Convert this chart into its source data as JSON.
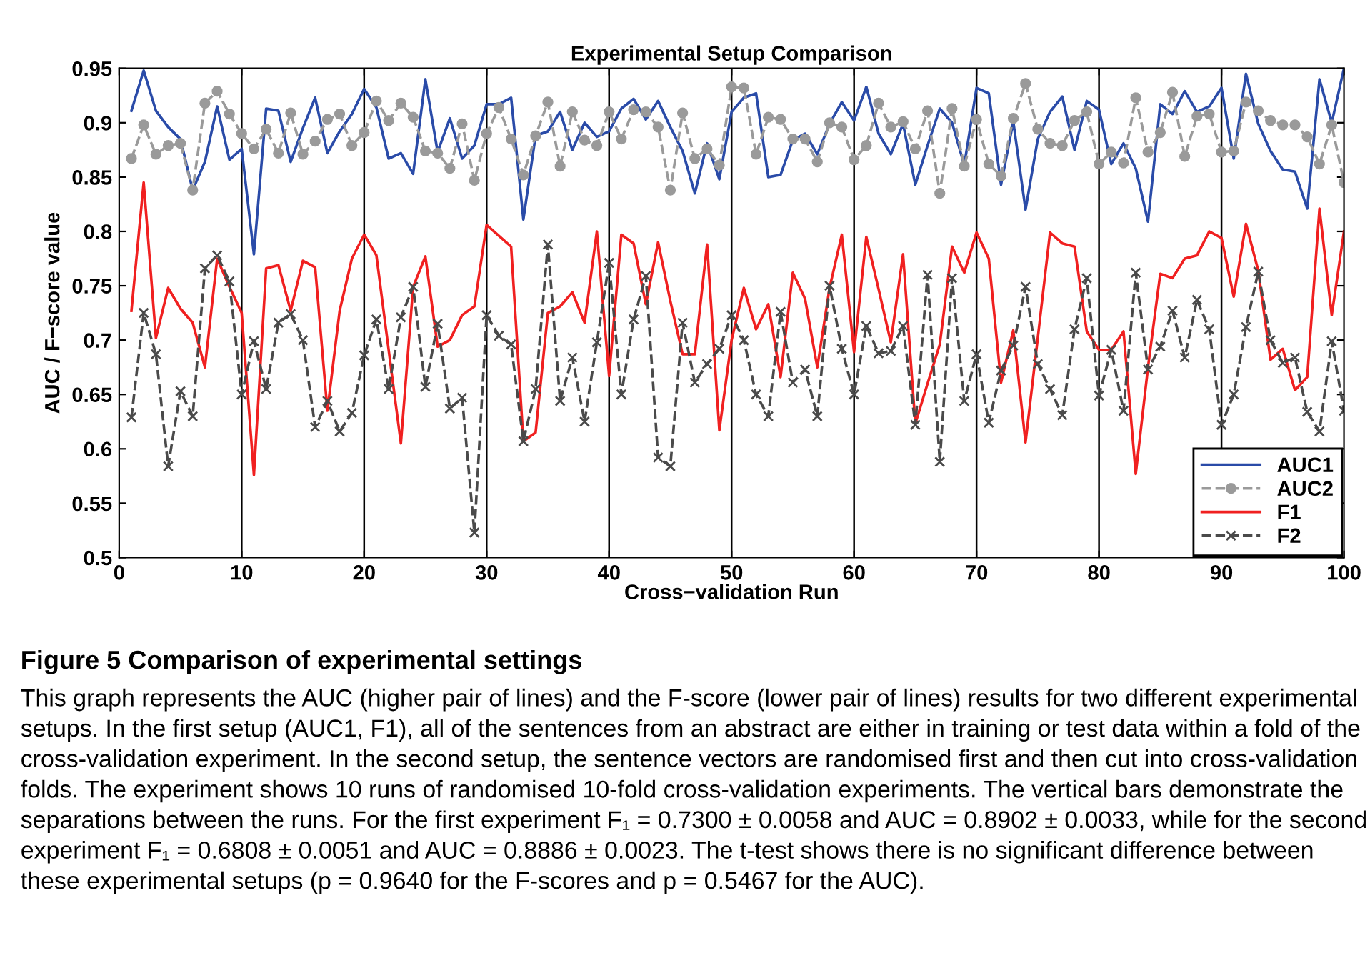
{
  "chart_data": {
    "type": "line",
    "title": "Experimental Setup Comparison",
    "xlabel": "Cross−validation Run",
    "ylabel": "AUC / F−score value",
    "x": [
      1,
      2,
      3,
      4,
      5,
      6,
      7,
      8,
      9,
      10,
      11,
      12,
      13,
      14,
      15,
      16,
      17,
      18,
      19,
      20,
      21,
      22,
      23,
      24,
      25,
      26,
      27,
      28,
      29,
      30,
      31,
      32,
      33,
      34,
      35,
      36,
      37,
      38,
      39,
      40,
      41,
      42,
      43,
      44,
      45,
      46,
      47,
      48,
      49,
      50,
      51,
      52,
      53,
      54,
      55,
      56,
      57,
      58,
      59,
      60,
      61,
      62,
      63,
      64,
      65,
      66,
      67,
      68,
      69,
      70,
      71,
      72,
      73,
      74,
      75,
      76,
      77,
      78,
      79,
      80,
      81,
      82,
      83,
      84,
      85,
      86,
      87,
      88,
      89,
      90,
      91,
      92,
      93,
      94,
      95,
      96,
      97,
      98,
      99,
      100
    ],
    "series": [
      {
        "name": "AUC1",
        "color": "#2a4ba8",
        "marker": "none",
        "line_style": "solid",
        "values": [
          0.911,
          0.948,
          0.911,
          0.896,
          0.885,
          0.838,
          0.864,
          0.915,
          0.866,
          0.876,
          0.779,
          0.913,
          0.911,
          0.864,
          0.895,
          0.923,
          0.872,
          0.892,
          0.908,
          0.931,
          0.914,
          0.867,
          0.872,
          0.853,
          0.94,
          0.873,
          0.904,
          0.867,
          0.879,
          0.917,
          0.917,
          0.923,
          0.811,
          0.888,
          0.892,
          0.91,
          0.875,
          0.9,
          0.887,
          0.892,
          0.913,
          0.922,
          0.903,
          0.92,
          0.896,
          0.874,
          0.835,
          0.881,
          0.848,
          0.91,
          0.923,
          0.927,
          0.85,
          0.852,
          0.884,
          0.89,
          0.871,
          0.899,
          0.919,
          0.902,
          0.933,
          0.89,
          0.871,
          0.899,
          0.843,
          0.879,
          0.913,
          0.9,
          0.861,
          0.932,
          0.927,
          0.843,
          0.901,
          0.82,
          0.885,
          0.91,
          0.924,
          0.875,
          0.92,
          0.912,
          0.862,
          0.881,
          0.858,
          0.809,
          0.917,
          0.908,
          0.929,
          0.91,
          0.915,
          0.932,
          0.867,
          0.945,
          0.899,
          0.874,
          0.857,
          0.855,
          0.821,
          0.94,
          0.9,
          0.95
        ]
      },
      {
        "name": "AUC2",
        "color": "#9a9a9a",
        "marker": "circle",
        "line_style": "dashed",
        "values": [
          0.867,
          0.898,
          0.871,
          0.879,
          0.881,
          0.838,
          0.918,
          0.929,
          0.908,
          0.89,
          0.876,
          0.894,
          0.872,
          0.909,
          0.871,
          0.883,
          0.903,
          0.908,
          0.879,
          0.891,
          0.92,
          0.902,
          0.918,
          0.905,
          0.874,
          0.872,
          0.858,
          0.899,
          0.847,
          0.89,
          0.914,
          0.885,
          0.852,
          0.888,
          0.919,
          0.86,
          0.91,
          0.884,
          0.879,
          0.91,
          0.885,
          0.912,
          0.91,
          0.896,
          0.838,
          0.909,
          0.867,
          0.876,
          0.861,
          0.933,
          0.932,
          0.871,
          0.905,
          0.903,
          0.885,
          0.885,
          0.864,
          0.9,
          0.896,
          0.866,
          0.879,
          0.918,
          0.896,
          0.901,
          0.876,
          0.911,
          0.835,
          0.913,
          0.86,
          0.903,
          0.862,
          0.851,
          0.904,
          0.936,
          0.894,
          0.881,
          0.879,
          0.902,
          0.91,
          0.862,
          0.873,
          0.863,
          0.923,
          0.873,
          0.891,
          0.928,
          0.869,
          0.906,
          0.908,
          0.873,
          0.874,
          0.919,
          0.911,
          0.902,
          0.898,
          0.898,
          0.887,
          0.862,
          0.898,
          0.845
        ]
      },
      {
        "name": "F1",
        "color": "#f02020",
        "marker": "none",
        "line_style": "solid",
        "values": [
          0.727,
          0.845,
          0.702,
          0.748,
          0.729,
          0.716,
          0.675,
          0.775,
          0.749,
          0.725,
          0.576,
          0.766,
          0.769,
          0.727,
          0.773,
          0.767,
          0.635,
          0.727,
          0.775,
          0.797,
          0.778,
          0.691,
          0.605,
          0.749,
          0.777,
          0.694,
          0.7,
          0.723,
          0.731,
          0.806,
          0.796,
          0.786,
          0.607,
          0.615,
          0.725,
          0.731,
          0.744,
          0.716,
          0.8,
          0.667,
          0.797,
          0.789,
          0.733,
          0.79,
          0.736,
          0.687,
          0.687,
          0.788,
          0.617,
          0.7,
          0.748,
          0.71,
          0.733,
          0.666,
          0.762,
          0.738,
          0.675,
          0.748,
          0.797,
          0.689,
          0.795,
          0.747,
          0.698,
          0.779,
          0.623,
          0.66,
          0.696,
          0.786,
          0.762,
          0.799,
          0.775,
          0.661,
          0.709,
          0.606,
          0.702,
          0.799,
          0.789,
          0.786,
          0.708,
          0.691,
          0.691,
          0.708,
          0.577,
          0.675,
          0.761,
          0.757,
          0.775,
          0.778,
          0.8,
          0.794,
          0.74,
          0.807,
          0.764,
          0.682,
          0.692,
          0.654,
          0.666,
          0.821,
          0.723,
          0.8
        ]
      },
      {
        "name": "F2",
        "color": "#4a4a4a",
        "marker": "cross",
        "line_style": "dashed",
        "values": [
          0.629,
          0.725,
          0.687,
          0.584,
          0.653,
          0.63,
          0.766,
          0.778,
          0.754,
          0.65,
          0.699,
          0.655,
          0.716,
          0.724,
          0.7,
          0.62,
          0.644,
          0.616,
          0.633,
          0.686,
          0.719,
          0.655,
          0.721,
          0.749,
          0.657,
          0.715,
          0.637,
          0.647,
          0.523,
          0.723,
          0.704,
          0.696,
          0.607,
          0.655,
          0.788,
          0.644,
          0.684,
          0.625,
          0.698,
          0.771,
          0.65,
          0.719,
          0.759,
          0.592,
          0.584,
          0.716,
          0.661,
          0.678,
          0.692,
          0.723,
          0.7,
          0.65,
          0.63,
          0.726,
          0.661,
          0.673,
          0.63,
          0.75,
          0.692,
          0.65,
          0.713,
          0.688,
          0.69,
          0.713,
          0.622,
          0.76,
          0.588,
          0.757,
          0.644,
          0.687,
          0.624,
          0.672,
          0.695,
          0.749,
          0.678,
          0.655,
          0.631,
          0.71,
          0.757,
          0.649,
          0.691,
          0.635,
          0.762,
          0.673,
          0.694,
          0.727,
          0.684,
          0.737,
          0.71,
          0.622,
          0.65,
          0.712,
          0.763,
          0.7,
          0.679,
          0.684,
          0.634,
          0.616,
          0.699,
          0.635
        ]
      }
    ],
    "xlim": [
      0,
      100
    ],
    "xticks": [
      0,
      10,
      20,
      30,
      40,
      50,
      60,
      70,
      80,
      90,
      100
    ],
    "ylim": [
      0.5,
      0.95
    ],
    "yticks": [
      0.5,
      0.55,
      0.6,
      0.65,
      0.7,
      0.75,
      0.8,
      0.85,
      0.9,
      0.95
    ],
    "ref_lines": [
      {
        "axis": "x",
        "value": 10,
        "color": "#000000"
      },
      {
        "axis": "x",
        "value": 20,
        "color": "#000000"
      },
      {
        "axis": "x",
        "value": 30,
        "color": "#000000"
      },
      {
        "axis": "x",
        "value": 40,
        "color": "#000000"
      },
      {
        "axis": "x",
        "value": 50,
        "color": "#000000"
      },
      {
        "axis": "x",
        "value": 60,
        "color": "#000000"
      },
      {
        "axis": "x",
        "value": 70,
        "color": "#000000"
      },
      {
        "axis": "x",
        "value": 80,
        "color": "#000000"
      },
      {
        "axis": "x",
        "value": 90,
        "color": "#000000"
      }
    ],
    "legend": "bottom right",
    "grid": false,
    "annotations": [
      "Figure 5 Comparison of experimental settings",
      "This graph represents the AUC (higher pair of lines) and the F-score (lower pair of lines) results for two different experimental setups. In the first setup (AUC1, F1), all of the sentences from an abstract are either in training or test data within a fold of the cross-validation experiment. In the second setup, the sentence vectors are randomised first and then cut into cross-validation folds. The experiment shows 10 runs of randomised 10-fold cross-validation experiments. The vertical bars demonstrate the separations between the runs. For the first experiment F₁ = 0.7300 ± 0.0058 and AUC = 0.8902 ± 0.0033, while for the second experiment F₁ = 0.6808 ± 0.0051 and AUC = 0.8886 ± 0.0023. The t-test shows there is no significant difference between these experimental setups (p = 0.9640 for the F-scores and p = 0.5467 for the AUC)."
    ]
  }
}
